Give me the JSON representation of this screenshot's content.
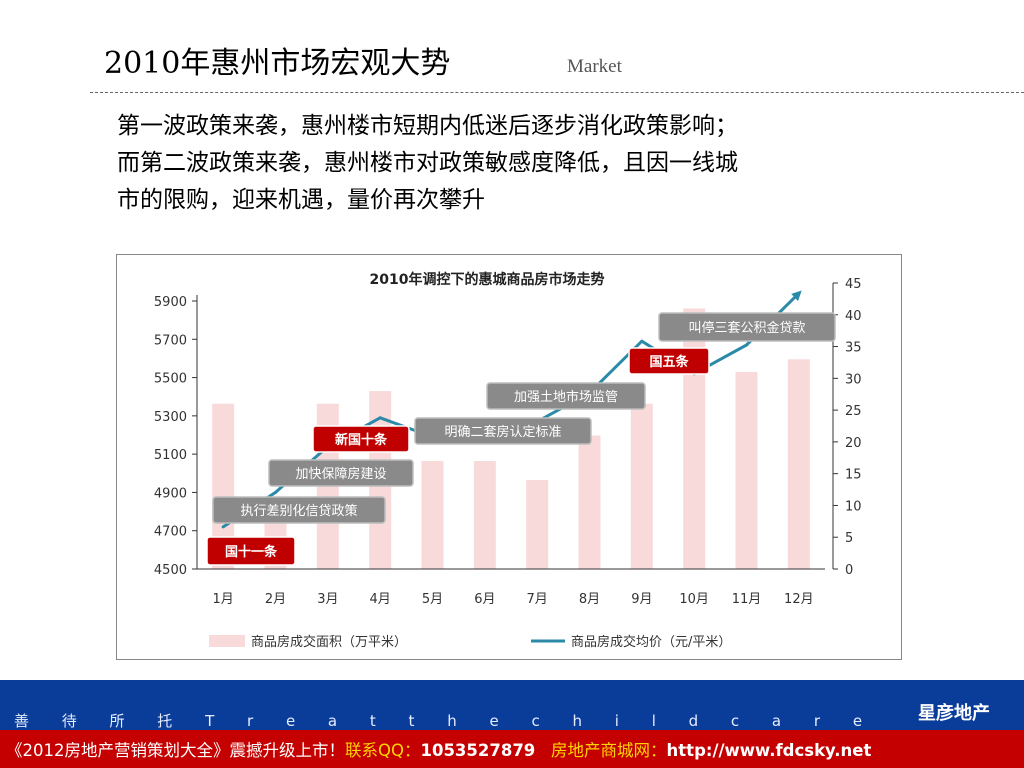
{
  "slide": {
    "title": "2010年惠州市场宏观大势",
    "subtitle": "Market",
    "body_lines": [
      "第一波政策来袭，惠州楼市短期内低迷后逐步消化政策影响；",
      "而第二波政策来袭，惠州楼市对政策敏感度降低，且因一线城",
      "市的限购，迎来机遇，量价再次攀升"
    ]
  },
  "footer": {
    "slogan": "善 待 所 托  T r e a t  t h e  c h i l d  c a r e",
    "brand": "星彦地产"
  },
  "ad": {
    "part1": "《2012房地产营销策划大全》震撼升级上市！",
    "part2": "联系QQ：",
    "qq": "1053527879",
    "part3": "房地产商城网：",
    "url": "http://www.fdcsky.net"
  },
  "chart_data": {
    "type": "bar",
    "title": "2010年调控下的惠城商品房市场走势",
    "categories": [
      "1月",
      "2月",
      "3月",
      "4月",
      "5月",
      "6月",
      "7月",
      "8月",
      "9月",
      "10月",
      "11月",
      "12月"
    ],
    "left_axis": {
      "ticks": [
        4500,
        4700,
        4900,
        5100,
        5300,
        5500,
        5700,
        5900
      ],
      "range": [
        4500,
        5900
      ]
    },
    "right_axis": {
      "ticks": [
        0,
        5,
        10,
        15,
        20,
        25,
        30,
        35,
        40,
        45
      ],
      "range": [
        0,
        45
      ]
    },
    "series": [
      {
        "name": "商品房成交面积（万平米）",
        "type": "bar",
        "axis": "right",
        "color": "#f9dada",
        "values": [
          26,
          10,
          26,
          28,
          17,
          17,
          14,
          21,
          26,
          41,
          31,
          33
        ]
      },
      {
        "name": "商品房成交均价（元/平米）",
        "type": "line",
        "axis": "left",
        "color": "#2b8aa8",
        "values": [
          4720,
          4900,
          5140,
          5290,
          5190,
          5220,
          5270,
          5420,
          5690,
          5520,
          5670,
          5940
        ]
      }
    ],
    "annotations": [
      {
        "text": "国十一条",
        "style": "red"
      },
      {
        "text": "执行差别化信贷政策",
        "style": "gray"
      },
      {
        "text": "加快保障房建设",
        "style": "gray"
      },
      {
        "text": "新国十条",
        "style": "red"
      },
      {
        "text": "明确二套房认定标准",
        "style": "gray"
      },
      {
        "text": "加强土地市场监管",
        "style": "gray"
      },
      {
        "text": "国五条",
        "style": "red"
      },
      {
        "text": "叫停三套公积金贷款",
        "style": "gray"
      }
    ],
    "legend_position": "bottom",
    "grid": false
  }
}
